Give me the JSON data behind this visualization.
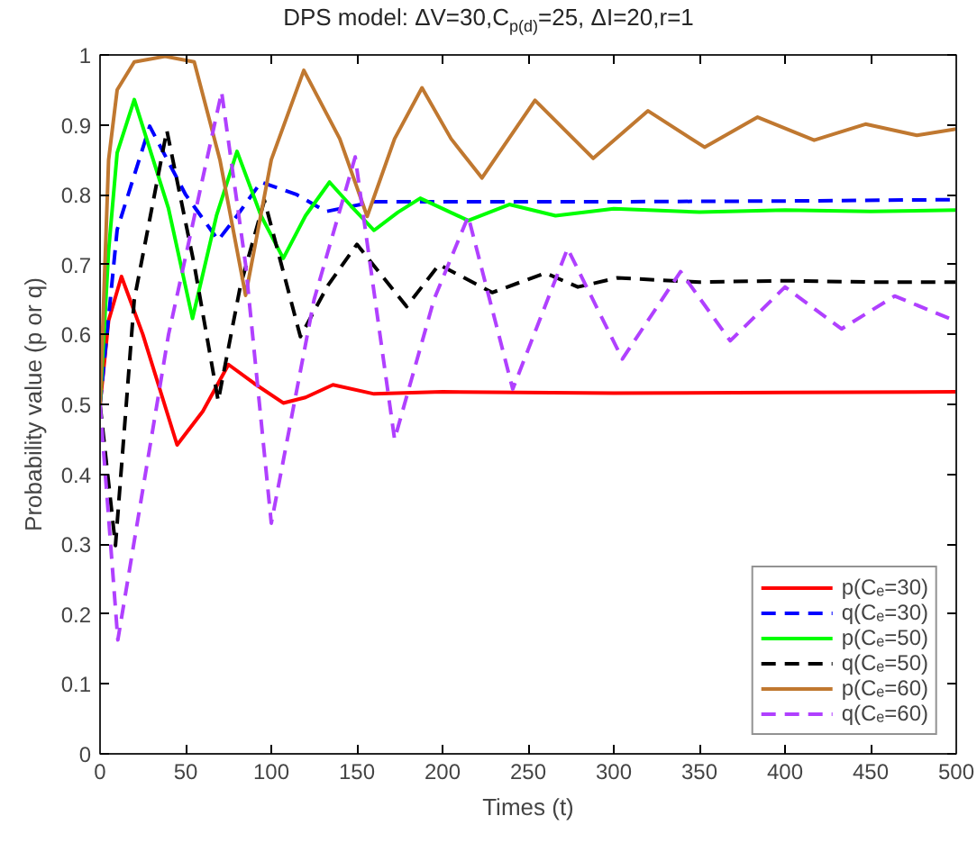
{
  "chart_data": {
    "type": "line",
    "title": "DPS model: ΔV=30,C$_{p(d)}$=25, ΔI=20,r=1",
    "xlabel": "Times (t)",
    "ylabel": "Probability value (p or q)",
    "xlim": [
      0,
      500
    ],
    "ylim": [
      0,
      1
    ],
    "xticks": [
      0,
      50,
      100,
      150,
      200,
      250,
      300,
      350,
      400,
      450,
      500
    ],
    "yticks": [
      0,
      {
        "value": 0.1,
        "label": "0.1"
      },
      {
        "value": 0.2,
        "label": "0.2"
      },
      {
        "value": 0.3,
        "label": "0.3"
      },
      {
        "value": 0.4,
        "label": "0.4"
      },
      {
        "value": 0.5,
        "label": "0.5"
      },
      {
        "value": 0.6,
        "label": "0.6"
      },
      {
        "value": 0.7,
        "label": "0.7"
      },
      {
        "value": 0.8,
        "label": "0.8"
      },
      {
        "value": 0.9,
        "label": "0.9"
      },
      1
    ],
    "grid": false,
    "legend": "bottom right",
    "series": [
      {
        "name": "p(Cₑ=30)",
        "color": "#ff0000",
        "line_style": "solid",
        "x": [
          0,
          5,
          12.5,
          25,
          45,
          60,
          75,
          90,
          107,
          120,
          136,
          160,
          200,
          300,
          400,
          500
        ],
        "values": [
          0.5,
          0.62,
          0.683,
          0.6,
          0.442,
          0.49,
          0.557,
          0.53,
          0.502,
          0.51,
          0.528,
          0.515,
          0.518,
          0.516,
          0.517,
          0.518
        ]
      },
      {
        "name": "q(Cₑ=30)",
        "color": "#0000ff",
        "line_style": "dashed",
        "x": [
          0,
          10,
          29,
          50,
          69,
          80,
          94,
          115,
          132,
          160,
          200,
          300,
          400,
          500
        ],
        "values": [
          0.5,
          0.75,
          0.898,
          0.8,
          0.735,
          0.77,
          0.818,
          0.8,
          0.776,
          0.79,
          0.79,
          0.79,
          0.791,
          0.793
        ]
      },
      {
        "name": "p(Cₑ=50)",
        "color": "#00ff00",
        "line_style": "solid",
        "x": [
          0,
          5,
          10,
          20,
          40,
          54,
          68,
          80,
          94,
          107,
          120,
          134,
          148,
          160,
          174,
          187,
          215,
          239,
          266,
          300,
          350,
          400,
          450,
          500
        ],
        "values": [
          0.5,
          0.72,
          0.86,
          0.936,
          0.78,
          0.623,
          0.77,
          0.862,
          0.77,
          0.709,
          0.77,
          0.818,
          0.78,
          0.749,
          0.775,
          0.795,
          0.763,
          0.786,
          0.77,
          0.78,
          0.775,
          0.778,
          0.776,
          0.778
        ]
      },
      {
        "name": "q(Cₑ=50)",
        "color": "#000000",
        "line_style": "dashed",
        "x": [
          0,
          9,
          20,
          39,
          55,
          69,
          82,
          96,
          117,
          133,
          150,
          179,
          198,
          229,
          260,
          279,
          302,
          350,
          400,
          450,
          500
        ],
        "values": [
          0.5,
          0.298,
          0.65,
          0.892,
          0.7,
          0.505,
          0.67,
          0.792,
          0.597,
          0.67,
          0.729,
          0.64,
          0.7,
          0.66,
          0.688,
          0.668,
          0.681,
          0.675,
          0.677,
          0.675,
          0.675
        ]
      },
      {
        "name": "p(Cₑ=60)",
        "color": "#c07830",
        "line_style": "solid",
        "x": [
          0,
          5,
          10,
          20,
          38,
          55,
          70,
          85,
          100,
          119,
          140,
          156,
          172,
          188,
          205,
          223,
          254,
          288,
          320,
          353,
          384,
          417,
          447,
          477,
          500
        ],
        "values": [
          0.5,
          0.85,
          0.95,
          0.99,
          0.998,
          0.99,
          0.85,
          0.656,
          0.85,
          0.978,
          0.88,
          0.769,
          0.88,
          0.953,
          0.88,
          0.824,
          0.935,
          0.852,
          0.92,
          0.868,
          0.911,
          0.878,
          0.901,
          0.885,
          0.894
        ]
      },
      {
        "name": "q(Cₑ=60)",
        "color": "#b040ff",
        "line_style": "dashed",
        "x": [
          0,
          10.4,
          40,
          71,
          85,
          100,
          125,
          149,
          172,
          195,
          215,
          241,
          273,
          305,
          339,
          368,
          400,
          433,
          464,
          500
        ],
        "values": [
          0.5,
          0.163,
          0.6,
          0.947,
          0.7,
          0.33,
          0.65,
          0.854,
          0.45,
          0.65,
          0.769,
          0.522,
          0.723,
          0.565,
          0.69,
          0.591,
          0.668,
          0.608,
          0.655,
          0.619
        ]
      }
    ]
  }
}
